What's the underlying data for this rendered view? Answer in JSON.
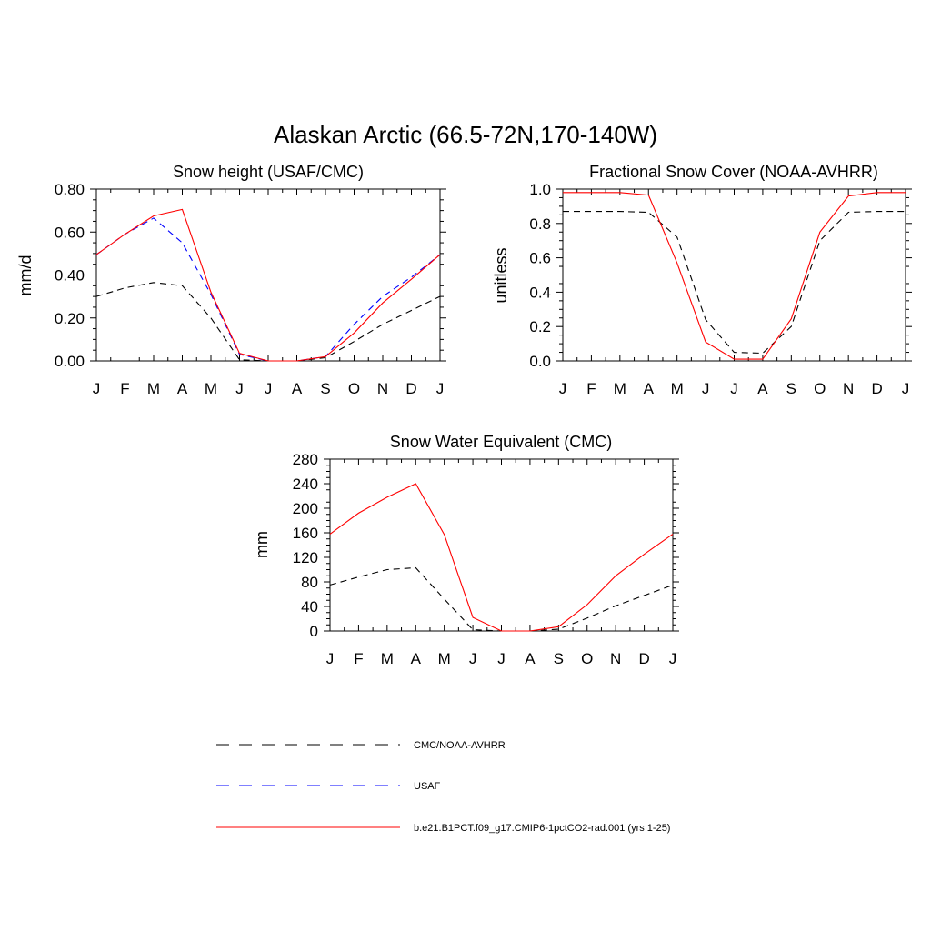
{
  "title": "Alaskan Arctic (66.5-72N,170-140W)",
  "colors": {
    "obs": "#000000",
    "usaf": "#0000ff",
    "model": "#ff0000"
  },
  "legend": [
    {
      "key": "obs",
      "label": "CMC/NOAA-AVHRR",
      "color": "#000000",
      "style": "dashed"
    },
    {
      "key": "usaf",
      "label": "USAF",
      "color": "#0000ff",
      "style": "dashed"
    },
    {
      "key": "model",
      "label": "b.e21.B1PCT.f09_g17.CMIP6-1pctCO2-rad.001 (yrs 1-25)",
      "color": "#ff0000",
      "style": "solid"
    }
  ],
  "chart_data": [
    {
      "type": "line",
      "title": "Snow height (USAF/CMC)",
      "xlabel": "",
      "ylabel": "mm/d",
      "categories": [
        "J",
        "F",
        "M",
        "A",
        "M",
        "J",
        "J",
        "A",
        "S",
        "O",
        "N",
        "D",
        "J"
      ],
      "ylim": [
        0,
        0.8
      ],
      "yticks": [
        "0.00",
        "0.20",
        "0.40",
        "0.60",
        "0.80"
      ],
      "series": [
        {
          "name": "CMC/NOAA-AVHRR",
          "key": "obs",
          "values": [
            0.3,
            0.34,
            0.365,
            0.35,
            0.2,
            0.005,
            0.0,
            0.0,
            0.015,
            0.09,
            0.17,
            0.235,
            0.3
          ]
        },
        {
          "name": "USAF",
          "key": "usaf",
          "values": [
            0.495,
            0.59,
            0.665,
            0.55,
            0.31,
            0.03,
            0.0,
            0.0,
            0.02,
            0.17,
            0.3,
            0.39,
            0.495
          ]
        },
        {
          "name": "b.e21.B1PCT.f09_g17.CMIP6-1pctCO2-rad.001 (yrs 1-25)",
          "key": "model",
          "values": [
            0.495,
            0.59,
            0.675,
            0.705,
            0.32,
            0.035,
            0.0,
            0.0,
            0.02,
            0.13,
            0.27,
            0.38,
            0.495
          ]
        }
      ]
    },
    {
      "type": "line",
      "title": "Fractional Snow Cover (NOAA-AVHRR)",
      "xlabel": "",
      "ylabel": "unitless",
      "categories": [
        "J",
        "F",
        "M",
        "A",
        "M",
        "J",
        "J",
        "A",
        "S",
        "O",
        "N",
        "D",
        "J"
      ],
      "ylim": [
        0,
        1.0
      ],
      "yticks": [
        "0.0",
        "0.2",
        "0.4",
        "0.6",
        "0.8",
        "1.0"
      ],
      "series": [
        {
          "name": "CMC/NOAA-AVHRR",
          "key": "obs",
          "values": [
            0.87,
            0.87,
            0.87,
            0.865,
            0.72,
            0.24,
            0.05,
            0.045,
            0.2,
            0.7,
            0.865,
            0.87,
            0.87
          ]
        },
        {
          "name": "b.e21.B1PCT.f09_g17.CMIP6-1pctCO2-rad.001 (yrs 1-25)",
          "key": "model",
          "values": [
            0.98,
            0.98,
            0.98,
            0.965,
            0.57,
            0.11,
            0.01,
            0.01,
            0.245,
            0.75,
            0.96,
            0.98,
            0.98
          ]
        }
      ]
    },
    {
      "type": "line",
      "title": "Snow Water Equivalent (CMC)",
      "xlabel": "",
      "ylabel": "mm",
      "categories": [
        "J",
        "F",
        "M",
        "A",
        "M",
        "J",
        "J",
        "A",
        "S",
        "O",
        "N",
        "D",
        "J"
      ],
      "ylim": [
        0,
        280
      ],
      "yticks": [
        "0",
        "40",
        "80",
        "120",
        "160",
        "200",
        "240",
        "280"
      ],
      "series": [
        {
          "name": "CMC/NOAA-AVHRR",
          "key": "obs",
          "values": [
            75,
            88,
            100,
            103,
            52,
            2,
            0,
            0,
            3,
            21,
            41,
            58,
            75
          ]
        },
        {
          "name": "b.e21.B1PCT.f09_g17.CMIP6-1pctCO2-rad.001 (yrs 1-25)",
          "key": "model",
          "values": [
            158,
            192,
            218,
            240,
            157,
            22,
            0,
            0,
            7,
            43,
            90,
            125,
            158
          ]
        }
      ]
    }
  ]
}
